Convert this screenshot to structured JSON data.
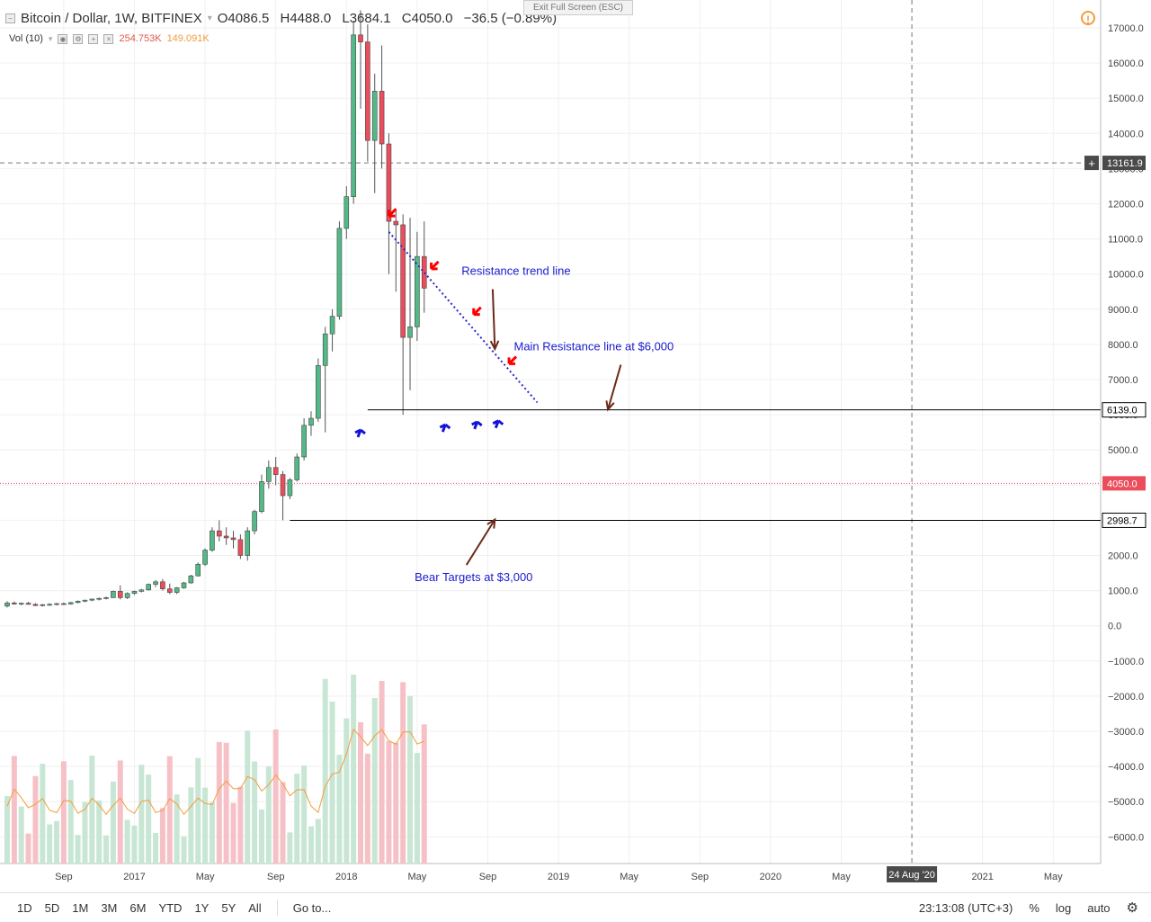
{
  "header": {
    "symbol": "Bitcoin / Dollar, 1W, BITFINEX",
    "open": "O4086.5",
    "high": "H4488.0",
    "low": "L3684.1",
    "close": "C4050.0",
    "change": "−36.5 (−0.89%)"
  },
  "volume_legend": {
    "label": "Vol (10)",
    "value1": "254.753K",
    "value2": "149.091K"
  },
  "exit_fullscreen": "Exit Full Screen (ESC)",
  "warning_icon": "!",
  "toolbar": {
    "ranges": [
      "1D",
      "5D",
      "1M",
      "3M",
      "6M",
      "YTD",
      "1Y",
      "5Y",
      "All"
    ],
    "goto": "Go to...",
    "clock": "23:13:08 (UTC+3)",
    "percent": "%",
    "log": "log",
    "auto": "auto"
  },
  "colors": {
    "up": "#53b987",
    "down": "#eb4d5c",
    "vol_up": "#c8e6d4",
    "vol_down": "#f6c1c6",
    "ma": "#f39c3c",
    "annotation_text": "#1b1bd1",
    "red_arrow": "#ff0000",
    "blue_arrow": "#1313d9",
    "trend_line": "#2828cc"
  },
  "chart_data": {
    "type": "candlestick",
    "title": "Bitcoin / Dollar, 1W, BITFINEX",
    "y_ticks": [
      -6000,
      -5000,
      -4000,
      -3000,
      -2000,
      -1000,
      0,
      1000,
      2000,
      3000,
      4000,
      5000,
      6000,
      7000,
      8000,
      9000,
      10000,
      11000,
      12000,
      13000,
      14000,
      15000,
      16000,
      17000
    ],
    "y_tick_labels": [
      "−6000.0",
      "−5000.0",
      "−4000.0",
      "−3000.0",
      "−2000.0",
      "−1000.0",
      "0.0",
      "1000.0",
      "2000.0",
      "3000.0",
      "4000.0",
      "5000.0",
      "6000.0",
      "7000.0",
      "8000.0",
      "9000.0",
      "10000.0",
      "11000.0",
      "12000.0",
      "13000.0",
      "14000.0",
      "15000.0",
      "16000.0",
      "17000.0"
    ],
    "x_labels": [
      {
        "text": "Sep",
        "week": 8
      },
      {
        "text": "2017",
        "week": 18
      },
      {
        "text": "May",
        "week": 28
      },
      {
        "text": "Sep",
        "week": 38
      },
      {
        "text": "2018",
        "week": 48
      },
      {
        "text": "May",
        "week": 58
      },
      {
        "text": "Sep",
        "week": 68
      },
      {
        "text": "2019",
        "week": 78
      },
      {
        "text": "May",
        "week": 88
      },
      {
        "text": "Sep",
        "week": 98
      },
      {
        "text": "2020",
        "week": 108
      },
      {
        "text": "May",
        "week": 118
      },
      {
        "text": "2021",
        "week": 138
      },
      {
        "text": "May",
        "week": 148
      }
    ],
    "crosshair_date": {
      "text": "24 Aug '20",
      "week": 128
    },
    "price_labels": [
      {
        "text": "13161.9",
        "value": 13161.9,
        "kind": "crosshair"
      },
      {
        "text": "6139.0",
        "value": 6139,
        "kind": "line"
      },
      {
        "text": "4050.0",
        "value": 4050,
        "kind": "last"
      },
      {
        "text": "2998.7",
        "value": 2998.7,
        "kind": "line"
      }
    ],
    "horizontal_lines": [
      {
        "name": "main-resistance",
        "value": 6139,
        "from_week": 51,
        "to_week": 160
      },
      {
        "name": "bear-target",
        "value": 2998.7,
        "from_week": 40,
        "to_week": 160
      }
    ],
    "trend_line": {
      "from": {
        "week": 54,
        "value": 11200
      },
      "to": {
        "week": 75,
        "value": 6350
      }
    },
    "annotations": [
      {
        "text": "Resistance trend line",
        "week": 72,
        "value": 9980,
        "arrow_to": {
          "week": 69,
          "value": 7870
        }
      },
      {
        "text": "Main Resistance line at $6,000",
        "week": 83,
        "value": 7830,
        "arrow_to": {
          "week": 85,
          "value": 6150
        }
      },
      {
        "text": "Bear Targets at $3,000",
        "week": 66,
        "value": 1270,
        "arrow_to": {
          "week": 69,
          "value": 3020
        }
      }
    ],
    "red_arrows": [
      {
        "week": 54,
        "value": 11650
      },
      {
        "week": 60,
        "value": 10150
      },
      {
        "week": 66,
        "value": 8850
      },
      {
        "week": 71,
        "value": 7450
      }
    ],
    "blue_arrows": [
      {
        "week": 50,
        "value": 5570
      },
      {
        "week": 62,
        "value": 5720
      },
      {
        "week": 66.5,
        "value": 5800
      },
      {
        "week": 69.5,
        "value": 5830
      }
    ],
    "candles": [
      {
        "o": 560,
        "h": 700,
        "l": 520,
        "c": 650
      },
      {
        "o": 650,
        "h": 690,
        "l": 600,
        "c": 620
      },
      {
        "o": 620,
        "h": 660,
        "l": 580,
        "c": 640
      },
      {
        "o": 640,
        "h": 680,
        "l": 600,
        "c": 610
      },
      {
        "o": 610,
        "h": 640,
        "l": 560,
        "c": 575
      },
      {
        "o": 575,
        "h": 620,
        "l": 550,
        "c": 600
      },
      {
        "o": 600,
        "h": 640,
        "l": 570,
        "c": 610
      },
      {
        "o": 610,
        "h": 650,
        "l": 580,
        "c": 630
      },
      {
        "o": 630,
        "h": 660,
        "l": 600,
        "c": 620
      },
      {
        "o": 620,
        "h": 680,
        "l": 600,
        "c": 660
      },
      {
        "o": 660,
        "h": 720,
        "l": 640,
        "c": 700
      },
      {
        "o": 700,
        "h": 740,
        "l": 670,
        "c": 730
      },
      {
        "o": 730,
        "h": 770,
        "l": 700,
        "c": 760
      },
      {
        "o": 760,
        "h": 800,
        "l": 720,
        "c": 780
      },
      {
        "o": 780,
        "h": 830,
        "l": 750,
        "c": 800
      },
      {
        "o": 800,
        "h": 1000,
        "l": 790,
        "c": 980
      },
      {
        "o": 980,
        "h": 1150,
        "l": 750,
        "c": 800
      },
      {
        "o": 800,
        "h": 950,
        "l": 760,
        "c": 920
      },
      {
        "o": 920,
        "h": 1000,
        "l": 880,
        "c": 980
      },
      {
        "o": 980,
        "h": 1050,
        "l": 950,
        "c": 1020
      },
      {
        "o": 1020,
        "h": 1200,
        "l": 1000,
        "c": 1180
      },
      {
        "o": 1180,
        "h": 1300,
        "l": 1100,
        "c": 1250
      },
      {
        "o": 1250,
        "h": 1330,
        "l": 1000,
        "c": 1050
      },
      {
        "o": 1050,
        "h": 1200,
        "l": 900,
        "c": 950
      },
      {
        "o": 950,
        "h": 1100,
        "l": 900,
        "c": 1080
      },
      {
        "o": 1080,
        "h": 1250,
        "l": 1050,
        "c": 1220
      },
      {
        "o": 1220,
        "h": 1450,
        "l": 1200,
        "c": 1420
      },
      {
        "o": 1420,
        "h": 1800,
        "l": 1400,
        "c": 1750
      },
      {
        "o": 1750,
        "h": 2200,
        "l": 1700,
        "c": 2150
      },
      {
        "o": 2150,
        "h": 2800,
        "l": 2100,
        "c": 2700
      },
      {
        "o": 2700,
        "h": 3000,
        "l": 2400,
        "c": 2550
      },
      {
        "o": 2550,
        "h": 2800,
        "l": 2300,
        "c": 2500
      },
      {
        "o": 2500,
        "h": 2700,
        "l": 2200,
        "c": 2450
      },
      {
        "o": 2450,
        "h": 2600,
        "l": 1900,
        "c": 2000
      },
      {
        "o": 2000,
        "h": 2800,
        "l": 1850,
        "c": 2700
      },
      {
        "o": 2700,
        "h": 3300,
        "l": 2600,
        "c": 3250
      },
      {
        "o": 3250,
        "h": 4300,
        "l": 3200,
        "c": 4100
      },
      {
        "o": 4100,
        "h": 4700,
        "l": 3900,
        "c": 4500
      },
      {
        "o": 4500,
        "h": 4800,
        "l": 4000,
        "c": 4300
      },
      {
        "o": 4300,
        "h": 4400,
        "l": 3000,
        "c": 3700
      },
      {
        "o": 3700,
        "h": 4200,
        "l": 3600,
        "c": 4150
      },
      {
        "o": 4150,
        "h": 4900,
        "l": 4100,
        "c": 4800
      },
      {
        "o": 4800,
        "h": 5900,
        "l": 4700,
        "c": 5700
      },
      {
        "o": 5700,
        "h": 6100,
        "l": 5400,
        "c": 5900
      },
      {
        "o": 5900,
        "h": 7600,
        "l": 5800,
        "c": 7400
      },
      {
        "o": 7400,
        "h": 8500,
        "l": 5500,
        "c": 8300
      },
      {
        "o": 8300,
        "h": 9000,
        "l": 7800,
        "c": 8800
      },
      {
        "o": 8800,
        "h": 11500,
        "l": 8700,
        "c": 11300
      },
      {
        "o": 11300,
        "h": 12500,
        "l": 11000,
        "c": 12200
      },
      {
        "o": 12200,
        "h": 17200,
        "l": 12000,
        "c": 16800
      },
      {
        "o": 16800,
        "h": 17500,
        "l": 14700,
        "c": 16600
      },
      {
        "o": 16600,
        "h": 17100,
        "l": 13200,
        "c": 13800
      },
      {
        "o": 13800,
        "h": 15700,
        "l": 12300,
        "c": 15200
      },
      {
        "o": 15200,
        "h": 16500,
        "l": 13000,
        "c": 13700
      },
      {
        "o": 13700,
        "h": 14000,
        "l": 10000,
        "c": 11500
      },
      {
        "o": 11500,
        "h": 11800,
        "l": 9500,
        "c": 11400
      },
      {
        "o": 11400,
        "h": 11700,
        "l": 6000,
        "c": 8200
      },
      {
        "o": 8200,
        "h": 11600,
        "l": 6700,
        "c": 8500
      },
      {
        "o": 8500,
        "h": 11200,
        "l": 8100,
        "c": 10500
      },
      {
        "o": 10500,
        "h": 11500,
        "l": 8900,
        "c": 9600
      }
    ],
    "volume_axis_note": "Volume bars and 10-period moving average drawn in lower pane"
  }
}
